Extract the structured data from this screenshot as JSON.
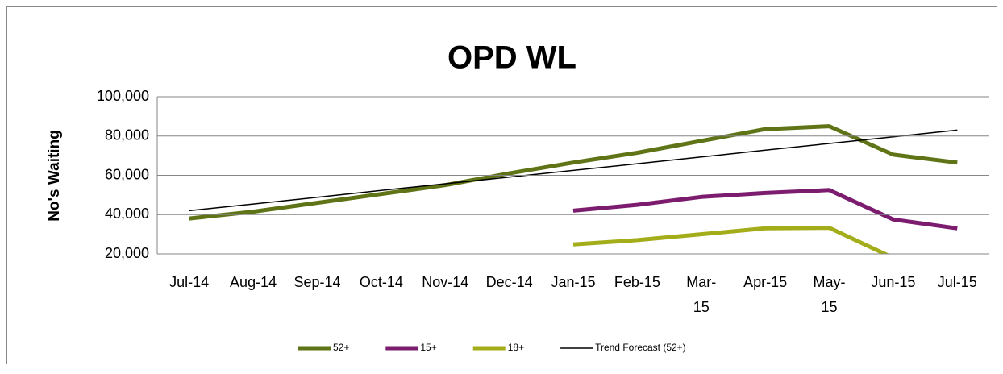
{
  "chart_data": {
    "type": "line",
    "title": "OPD WL",
    "y_label": "No's Waiting",
    "categories": [
      "Jul-14",
      "Aug-14",
      "Sep-14",
      "Oct-14",
      "Nov-14",
      "Dec-14",
      "Jan-15",
      "Feb-15",
      "Mar-15",
      "Apr-15",
      "May-15",
      "Jun-15",
      "Jul-15"
    ],
    "series": [
      {
        "name": "52+",
        "color": "#5f7416",
        "width": 5,
        "values": [
          38000,
          41500,
          46000,
          50500,
          55000,
          61000,
          66500,
          71500,
          77500,
          83500,
          85000,
          70500,
          66500
        ]
      },
      {
        "name": "15+",
        "color": "#7b1c6e",
        "width": 5,
        "values": [
          null,
          null,
          null,
          null,
          null,
          null,
          42000,
          45000,
          49000,
          51000,
          52500,
          37500,
          33000
        ]
      },
      {
        "name": "18+",
        "color": "#a3ad1a",
        "width": 5,
        "values": [
          null,
          null,
          null,
          null,
          null,
          null,
          24800,
          27000,
          30000,
          33000,
          33300,
          18000,
          null
        ]
      },
      {
        "name": "Trend Forecast (52+)",
        "color": "#000000",
        "width": 1.5,
        "values": [
          42000,
          45400,
          48800,
          52300,
          55700,
          59100,
          62500,
          65900,
          69300,
          72800,
          76200,
          79600,
          83000
        ]
      }
    ],
    "ylim": [
      20000,
      100000
    ],
    "yticks": [
      {
        "value": 20000,
        "label": "20,000"
      },
      {
        "value": 40000,
        "label": "40,000"
      },
      {
        "value": 60000,
        "label": "60,000"
      },
      {
        "value": 80000,
        "label": "80,000"
      },
      {
        "value": 100000,
        "label": "100,000"
      }
    ],
    "grid": true,
    "legend": "bottom"
  }
}
